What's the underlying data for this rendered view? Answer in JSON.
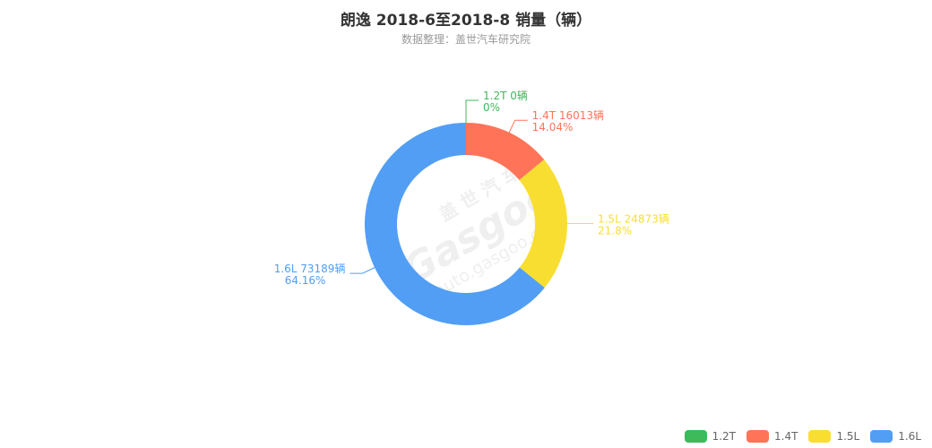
{
  "chart_data": {
    "type": "pie",
    "title": "朗逸 2018-6至2018-8 销量（辆）",
    "subtitle": "数据整理：盖世汽车研究院",
    "series": [
      {
        "name": "1.2T",
        "value": 0,
        "percent": "0%",
        "label": "1.2T 0辆",
        "color": "#3dba5a"
      },
      {
        "name": "1.4T",
        "value": 16013,
        "percent": "14.04%",
        "label": "1.4T 16013辆",
        "color": "#ff7458"
      },
      {
        "name": "1.5L",
        "value": 24873,
        "percent": "21.8%",
        "label": "1.5L 24873辆",
        "color": "#f9de32"
      },
      {
        "name": "1.6L",
        "value": 73189,
        "percent": "64.16%",
        "label": "1.6L 73189辆",
        "color": "#519ef4"
      }
    ],
    "legend_position": "bottom-right"
  }
}
